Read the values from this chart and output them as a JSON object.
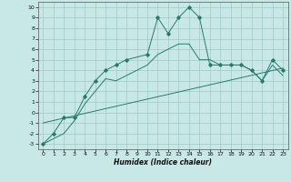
{
  "xlabel": "Humidex (Indice chaleur)",
  "background_color": "#c8e8e8",
  "grid_color": "#a0c8c8",
  "line_color": "#2a7a6a",
  "xlim": [
    -0.5,
    23.5
  ],
  "ylim": [
    -3.5,
    10.5
  ],
  "xticks": [
    0,
    1,
    2,
    3,
    4,
    5,
    6,
    7,
    8,
    9,
    10,
    11,
    12,
    13,
    14,
    15,
    16,
    17,
    18,
    19,
    20,
    21,
    22,
    23
  ],
  "yticks": [
    -3,
    -2,
    -1,
    0,
    1,
    2,
    3,
    4,
    5,
    6,
    7,
    8,
    9,
    10
  ],
  "curve1_x": [
    0,
    1,
    2,
    3,
    4,
    5,
    6,
    7,
    8,
    10,
    11,
    12,
    13,
    14,
    15,
    16,
    17,
    18,
    19,
    20,
    21,
    22,
    23
  ],
  "curve1_y": [
    -3,
    -2,
    -0.5,
    -0.5,
    1.5,
    3.0,
    4.0,
    4.5,
    5.0,
    5.5,
    9.0,
    7.5,
    9.0,
    10.0,
    9.0,
    4.5,
    4.5,
    4.5,
    4.5,
    4.0,
    3.0,
    5.0,
    4.0
  ],
  "curve2_x": [
    0,
    2,
    3,
    4,
    5,
    6,
    7,
    10,
    11,
    12,
    13,
    14,
    15,
    16,
    17,
    18,
    19,
    20,
    21,
    22,
    23
  ],
  "curve2_y": [
    -3,
    -2,
    -0.8,
    0.8,
    2.0,
    3.2,
    3.0,
    4.5,
    5.5,
    6.0,
    6.5,
    6.5,
    5.0,
    5.0,
    4.5,
    4.5,
    4.5,
    4.0,
    3.0,
    4.5,
    3.5
  ],
  "trend_x": [
    0,
    23
  ],
  "trend_y": [
    -1.0,
    4.2
  ]
}
